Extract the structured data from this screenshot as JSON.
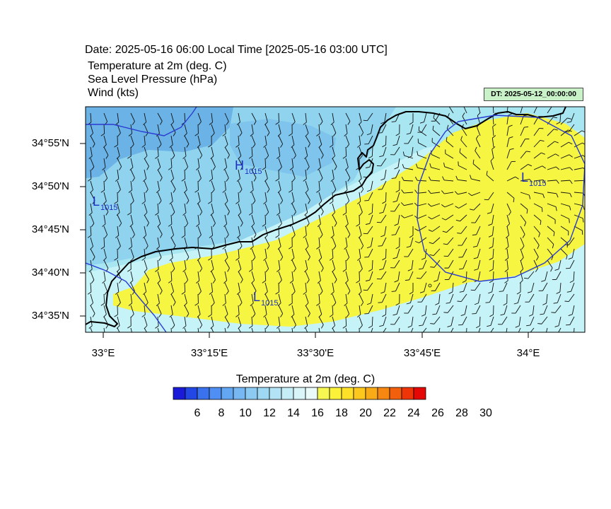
{
  "header": {
    "date_line": "Date: 2025-05-16  06:00 Local Time [2025-05-16  03:00 UTC]",
    "var_temp": "Temperature at 2m   (deg. C)",
    "var_slp": "Sea Level Pressure   (hPa)",
    "var_wind": "Wind   (kts)",
    "dt_badge": "DT: 2025-05-12_00:00:00"
  },
  "map": {
    "lat_ticks": [
      "34°55'N",
      "34°50'N",
      "34°45'N",
      "34°40'N",
      "34°35'N"
    ],
    "lon_ticks": [
      "33°E",
      "33°15'E",
      "33°30'E",
      "33°45'E",
      "34°E"
    ],
    "pressure_labels": [
      {
        "letter": "H",
        "value": "1015"
      },
      {
        "letter": "L",
        "value": "1015"
      },
      {
        "letter": "L",
        "value": "1015"
      },
      {
        "letter": "L",
        "value": "1015"
      }
    ],
    "colors": {
      "land_warm": "#f5f542",
      "sea_pale": "#c6f3f7",
      "sea_mid": "#a8e6f2",
      "sea_cool": "#8fd3ef",
      "inland_cool": "#7ec4ec",
      "inland_cold": "#6bb3e6",
      "isobar": "#2a3bd1",
      "coastline": "#000000"
    }
  },
  "colorbar": {
    "title": "Temperature at 2m  (deg. C)",
    "colors": [
      "#1a1ad8",
      "#2247e4",
      "#3a72ee",
      "#4f8ef2",
      "#63a6f2",
      "#77b8f2",
      "#8ccaf2",
      "#9ed8f3",
      "#b3e4f5",
      "#c6eef7",
      "#d9f5f8",
      "#eafaf9",
      "#f7f752",
      "#fdf23a",
      "#fde028",
      "#fcc81e",
      "#f9ab17",
      "#f68812",
      "#f3600d",
      "#ef3508",
      "#e50606"
    ],
    "tick_labels": [
      "6",
      "8",
      "10",
      "12",
      "14",
      "16",
      "18",
      "20",
      "22",
      "24",
      "26",
      "28",
      "30"
    ]
  }
}
